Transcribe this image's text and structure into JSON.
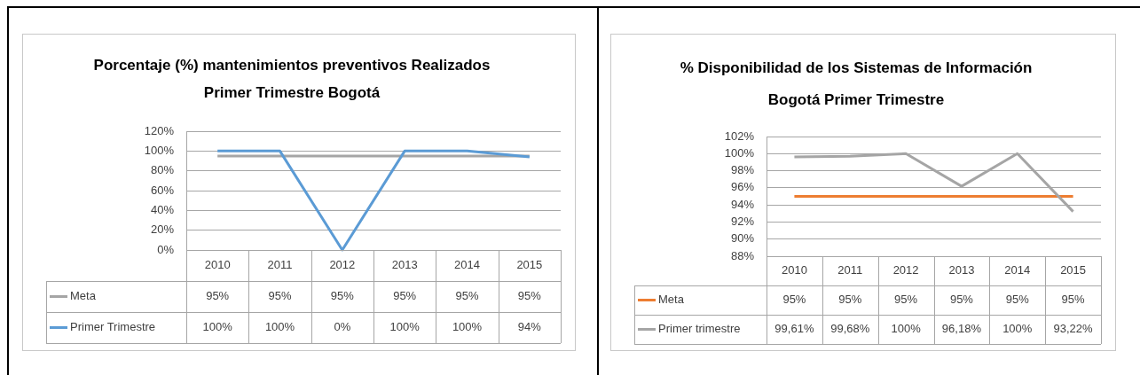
{
  "chart_data": [
    {
      "type": "line",
      "title": "Porcentaje (%) mantenimientos preventivos Realizados\nPrimer Trimestre Bogotá",
      "categories": [
        "2010",
        "2011",
        "2012",
        "2013",
        "2014",
        "2015"
      ],
      "series": [
        {
          "name": "Meta",
          "color": "#a5a5a5",
          "values": [
            95,
            95,
            95,
            95,
            95,
            95
          ],
          "value_labels": [
            "95%",
            "95%",
            "95%",
            "95%",
            "95%",
            "95%"
          ]
        },
        {
          "name": "Primer Trimestre",
          "color": "#5b9bd5",
          "values": [
            100,
            100,
            0,
            100,
            100,
            94
          ],
          "value_labels": [
            "100%",
            "100%",
            "0%",
            "100%",
            "100%",
            "94%"
          ]
        }
      ],
      "ylim": [
        0,
        120
      ],
      "yticks": [
        {
          "value": 0,
          "label": "0%"
        },
        {
          "value": 20,
          "label": "20%"
        },
        {
          "value": 40,
          "label": "40%"
        },
        {
          "value": 60,
          "label": "60%"
        },
        {
          "value": 80,
          "label": "80%"
        },
        {
          "value": 100,
          "label": "100%"
        },
        {
          "value": 120,
          "label": "120%"
        }
      ],
      "grid": "y",
      "legend": "bottom",
      "marker": "none"
    },
    {
      "type": "line",
      "title": "% Disponibilidad de los Sistemas de Información\nBogotá Primer Trimestre",
      "categories": [
        "2010",
        "2011",
        "2012",
        "2013",
        "2014",
        "2015"
      ],
      "series": [
        {
          "name": "Meta",
          "color": "#ed7d31",
          "values": [
            95,
            95,
            95,
            95,
            95,
            95
          ],
          "value_labels": [
            "95%",
            "95%",
            "95%",
            "95%",
            "95%",
            "95%"
          ]
        },
        {
          "name": "Primer trimestre",
          "color": "#a5a5a5",
          "values": [
            99.61,
            99.68,
            100,
            96.18,
            100,
            93.22
          ],
          "value_labels": [
            "99,61%",
            "99,68%",
            "100%",
            "96,18%",
            "100%",
            "93,22%"
          ]
        }
      ],
      "ylim": [
        88,
        102
      ],
      "yticks": [
        {
          "value": 88,
          "label": "88%"
        },
        {
          "value": 90,
          "label": "90%"
        },
        {
          "value": 92,
          "label": "92%"
        },
        {
          "value": 94,
          "label": "94%"
        },
        {
          "value": 96,
          "label": "96%"
        },
        {
          "value": 98,
          "label": "98%"
        },
        {
          "value": 100,
          "label": "100%"
        },
        {
          "value": 102,
          "label": "102%"
        }
      ],
      "grid": "y",
      "legend": "bottom",
      "marker": "none"
    }
  ]
}
